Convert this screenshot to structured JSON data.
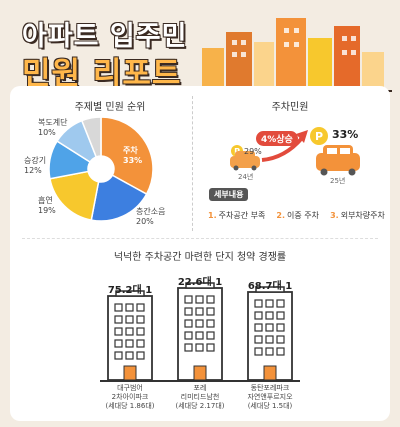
{
  "header": {
    "line1": "아파트 입주민",
    "line2": "민원 리포트"
  },
  "left": {
    "title": "주제별 민원 순위",
    "slices": [
      {
        "name": "주차",
        "pct": "33%",
        "value": 33,
        "color": "#f3923a"
      },
      {
        "name": "층간소음",
        "pct": "20%",
        "value": 20,
        "color": "#3d7fe0"
      },
      {
        "name": "흡연",
        "pct": "19%",
        "value": 19,
        "color": "#f7c82d"
      },
      {
        "name": "승강기",
        "pct": "12%",
        "value": 12,
        "color": "#4fa3e8"
      },
      {
        "name": "복도계단",
        "pct": "10%",
        "value": 10,
        "color": "#9fc9ee"
      },
      {
        "name": "",
        "pct": "",
        "value": 6,
        "color": "#d8d8d8"
      }
    ]
  },
  "right": {
    "title": "주차민원",
    "growth": "4%상승",
    "before": {
      "pct": "29%",
      "year": "24년"
    },
    "after": {
      "pct": "33%",
      "year": "25년"
    },
    "detail_label": "세부내용",
    "items": [
      {
        "num": "1.",
        "text": "주차공간 부족"
      },
      {
        "num": "2.",
        "text": "이중 주차"
      },
      {
        "num": "3.",
        "text": "외부차량주차"
      }
    ]
  },
  "bottom": {
    "title": "넉넉한 주차공간 마련한 단지 청약 경쟁률",
    "buildings": [
      {
        "rate": "75.2대 1",
        "name": [
          "대구범어",
          "2차아이파크"
        ],
        "sub": "(세대당 1.86대)"
      },
      {
        "rate": "22.6대 1",
        "name": [
          "포레",
          "리미티드남천"
        ],
        "sub": "(세대당 2.17대)"
      },
      {
        "rate": "68.7대 1",
        "name": [
          "동탄포레파크",
          "자연앤푸르지오"
        ],
        "sub": "(세대당 1.5대)"
      }
    ]
  },
  "chart_data": [
    {
      "type": "pie",
      "title": "주제별 민원 순위",
      "categories": [
        "주차",
        "층간소음",
        "흡연",
        "승강기",
        "복도계단"
      ],
      "values": [
        33,
        20,
        19,
        12,
        10
      ]
    },
    {
      "type": "bar",
      "title": "주차민원",
      "categories": [
        "24년",
        "25년"
      ],
      "values": [
        29,
        33
      ]
    },
    {
      "type": "bar",
      "title": "넉넉한 주차공간 마련한 단지 청약 경쟁률",
      "categories": [
        "대구범어 2차아이파크",
        "포레 리미티드남천",
        "동탄포레파크 자연앤푸르지오"
      ],
      "values": [
        75.2,
        22.6,
        68.7
      ]
    }
  ]
}
